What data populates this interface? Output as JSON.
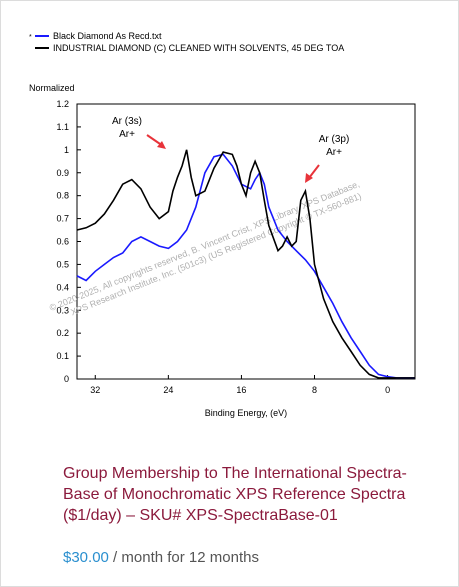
{
  "product": {
    "title": "Group Membership to The International Spectra-Base of Monochromatic XPS Reference Spectra ($1/day) – SKU# XPS-SpectraBase-01",
    "price": "$30.00",
    "price_suffix": " / month for 12 months"
  },
  "colors": {
    "title": "#8b1a3c",
    "price": "#2a8fcf",
    "series_blue": "#1a1aff",
    "series_black": "#000000",
    "annotation_arrow": "#e8333a"
  },
  "chart_data": {
    "type": "line",
    "xlabel": "Binding Energy, (eV)",
    "ylabel": "Normalized",
    "xlim": [
      34,
      -3
    ],
    "ylim": [
      0,
      1.2
    ],
    "xticks": [
      32,
      24,
      16,
      8,
      0
    ],
    "yticks": [
      0,
      0.1,
      0.2,
      0.3,
      0.4,
      0.5,
      0.6,
      0.7,
      0.8,
      0.9,
      1,
      1.1,
      1.2
    ],
    "legend": "top-left",
    "legend_marker": "*",
    "annotations": [
      {
        "line1": "Ar (3s)",
        "line2": "Ar+"
      },
      {
        "line1": "Ar (3p)",
        "line2": "Ar+"
      }
    ],
    "watermark": [
      "© 2020-2025,  All copyrights reserved,  B. Vincent Crist,  XPS Library, XPS Database,",
      "XPS Research Institute, Inc. (501c3)  (US Registered Copyright © TX-560-881)"
    ],
    "series": [
      {
        "name": "Black Diamond As Recd.txt",
        "color": "#1a1aff",
        "x": [
          34,
          33,
          32,
          31,
          30,
          29,
          28,
          27,
          26,
          25,
          24,
          23,
          22,
          21,
          20,
          19,
          18,
          17,
          16,
          15,
          14.5,
          14,
          13.5,
          13,
          12,
          11,
          10,
          9,
          8,
          7,
          6,
          5,
          4,
          3,
          2,
          1,
          0,
          -1,
          -2,
          -3
        ],
        "y": [
          0.45,
          0.43,
          0.47,
          0.5,
          0.53,
          0.55,
          0.6,
          0.62,
          0.6,
          0.58,
          0.57,
          0.6,
          0.65,
          0.75,
          0.9,
          0.97,
          0.98,
          0.93,
          0.85,
          0.83,
          0.87,
          0.9,
          0.85,
          0.75,
          0.65,
          0.6,
          0.56,
          0.52,
          0.47,
          0.4,
          0.33,
          0.25,
          0.18,
          0.12,
          0.06,
          0.02,
          0.01,
          0.005,
          0.005,
          0.005
        ]
      },
      {
        "name": "INDUSTRIAL DIAMOND (C) CLEANED WITH SOLVENTS, 45 DEG TOA",
        "color": "#000000",
        "x": [
          34,
          33,
          32,
          31,
          30,
          29,
          28,
          27,
          26,
          25,
          24,
          23.5,
          23,
          22.5,
          22,
          21.5,
          21,
          20,
          19,
          18,
          17,
          16.5,
          16,
          15.5,
          15,
          14.5,
          14,
          13.5,
          13,
          12,
          11.5,
          11,
          10.5,
          10,
          9.5,
          9,
          8.5,
          8,
          7,
          6,
          5,
          4,
          3,
          2,
          1,
          0,
          -1,
          -2,
          -3
        ],
        "y": [
          0.65,
          0.66,
          0.68,
          0.72,
          0.78,
          0.85,
          0.87,
          0.83,
          0.75,
          0.7,
          0.73,
          0.82,
          0.88,
          0.93,
          1.0,
          0.88,
          0.8,
          0.82,
          0.92,
          0.99,
          0.98,
          0.93,
          0.85,
          0.8,
          0.9,
          0.95,
          0.9,
          0.78,
          0.67,
          0.56,
          0.58,
          0.62,
          0.58,
          0.6,
          0.78,
          0.82,
          0.7,
          0.5,
          0.35,
          0.25,
          0.18,
          0.12,
          0.06,
          0.02,
          0.005,
          0.005,
          0.005,
          0.005,
          0.005
        ]
      }
    ]
  }
}
